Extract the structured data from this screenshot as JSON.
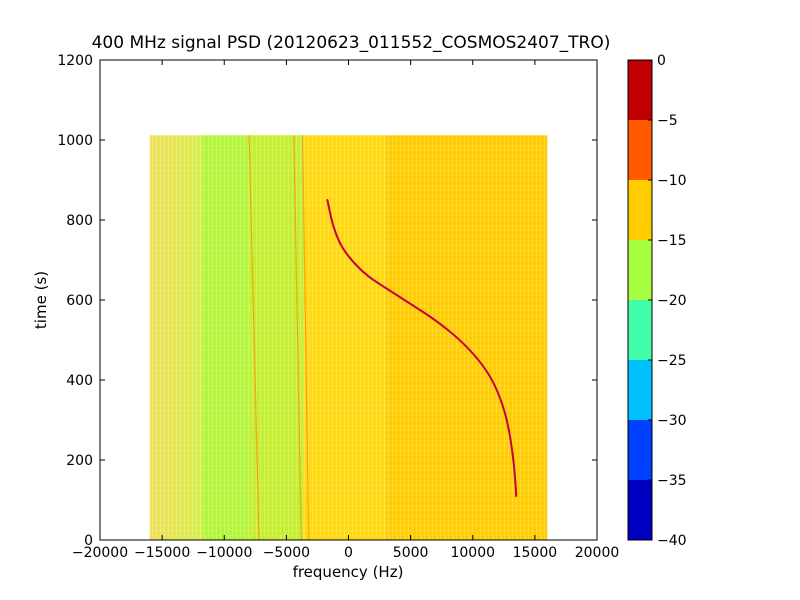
{
  "chart_data": {
    "type": "heatmap",
    "title": "400 MHz signal PSD (20120623_011552_COSMOS2407_TRO)",
    "xlabel": "frequency (Hz)",
    "ylabel": "time (s)",
    "xlim": [
      -20000,
      20000
    ],
    "ylim": [
      0,
      1200
    ],
    "xticks": [
      -20000,
      -15000,
      -10000,
      -5000,
      0,
      5000,
      10000,
      15000,
      20000
    ],
    "xtick_labels": [
      "−20000",
      "−15000",
      "−10000",
      "−5000",
      "0",
      "5000",
      "10000",
      "15000",
      "20000"
    ],
    "yticks": [
      0,
      200,
      400,
      600,
      800,
      1000,
      1200
    ],
    "ytick_labels": [
      "0",
      "200",
      "400",
      "600",
      "800",
      "1000",
      "1200"
    ],
    "data_extent": {
      "x": [
        -16000,
        16000
      ],
      "y": [
        0,
        1012
      ]
    },
    "grid": false,
    "colorbar": {
      "range": [
        -40,
        0
      ],
      "levels": [
        -40,
        -35,
        -30,
        -25,
        -20,
        -15,
        -10,
        -5,
        0
      ],
      "tick_labels": [
        "−40",
        "−35",
        "−30",
        "−25",
        "−20",
        "−15",
        "−10",
        "−5",
        "0"
      ],
      "colors": [
        "#0000c0",
        "#0040ff",
        "#00c0ff",
        "#40ffa8",
        "#a8ff40",
        "#ffcc00",
        "#ff5a00",
        "#c00000"
      ]
    },
    "psd_bands": [
      {
        "x": [
          -16000,
          -11800
        ],
        "level_color": "#efe05a"
      },
      {
        "x": [
          -11800,
          -8000
        ],
        "level_color": "#b4f53a"
      },
      {
        "x": [
          -8000,
          -3600
        ],
        "level_color": "#c4ee30"
      },
      {
        "x": [
          -3600,
          3000
        ],
        "level_color": "#ffd810"
      },
      {
        "x": [
          3000,
          16000
        ],
        "level_color": "#ffcc00"
      }
    ],
    "vertical_lines": [
      {
        "name": "line-1",
        "x_top": -8000,
        "x_bottom": -7200
      },
      {
        "name": "line-2",
        "x_top": -4400,
        "x_bottom": -3800
      },
      {
        "name": "line-3",
        "x_top": -3700,
        "x_bottom": -3200
      }
    ],
    "signal_trace": {
      "color": "#c8003c",
      "points": [
        [
          13500,
          110
        ],
        [
          13400,
          160
        ],
        [
          13200,
          220
        ],
        [
          12900,
          280
        ],
        [
          12400,
          340
        ],
        [
          11600,
          400
        ],
        [
          10500,
          450
        ],
        [
          9000,
          500
        ],
        [
          7000,
          550
        ],
        [
          5000,
          590
        ],
        [
          3000,
          630
        ],
        [
          1500,
          660
        ],
        [
          200,
          700
        ],
        [
          -700,
          740
        ],
        [
          -1300,
          790
        ],
        [
          -1700,
          850
        ]
      ]
    }
  }
}
